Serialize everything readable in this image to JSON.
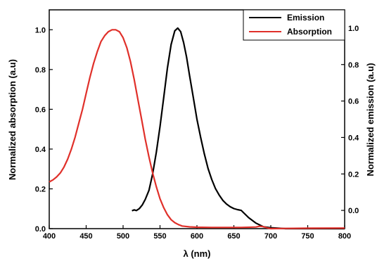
{
  "chart_data": {
    "type": "line",
    "xlabel": "λ (nm)",
    "ylabel_left": "Normalized absorption (a.u)",
    "ylabel_right": "Normalized emission (a.u)",
    "xlim": [
      400,
      800
    ],
    "ylim_left": [
      0.0,
      1.1
    ],
    "ylim_right": [
      -0.1,
      1.1
    ],
    "x_ticks": [
      400,
      450,
      500,
      550,
      600,
      650,
      700,
      750,
      800
    ],
    "y_ticks_left": [
      "0.0",
      "0.2",
      "0.4",
      "0.6",
      "0.8",
      "1.0"
    ],
    "y_ticks_right": [
      "0.0",
      "0.2",
      "0.4",
      "0.6",
      "0.8",
      "1.0"
    ],
    "grid": false,
    "legend_position": "top-right",
    "series": [
      {
        "name": "Emission",
        "color": "#000000",
        "axis": "right",
        "points": [
          [
            512,
            -0.002
          ],
          [
            515,
            0.003
          ],
          [
            518,
            -0.001
          ],
          [
            522,
            0.01
          ],
          [
            526,
            0.03
          ],
          [
            530,
            0.06
          ],
          [
            535,
            0.11
          ],
          [
            540,
            0.2
          ],
          [
            545,
            0.32
          ],
          [
            550,
            0.46
          ],
          [
            555,
            0.62
          ],
          [
            560,
            0.78
          ],
          [
            565,
            0.91
          ],
          [
            570,
            0.985
          ],
          [
            574,
            1.0
          ],
          [
            578,
            0.98
          ],
          [
            582,
            0.92
          ],
          [
            586,
            0.84
          ],
          [
            590,
            0.74
          ],
          [
            595,
            0.62
          ],
          [
            600,
            0.5
          ],
          [
            605,
            0.4
          ],
          [
            610,
            0.31
          ],
          [
            615,
            0.23
          ],
          [
            620,
            0.17
          ],
          [
            625,
            0.12
          ],
          [
            630,
            0.085
          ],
          [
            635,
            0.055
          ],
          [
            640,
            0.035
          ],
          [
            645,
            0.02
          ],
          [
            650,
            0.01
          ],
          [
            655,
            0.004
          ],
          [
            660,
            0.0
          ],
          [
            670,
            -0.04
          ],
          [
            680,
            -0.07
          ],
          [
            690,
            -0.09
          ],
          [
            700,
            -0.095
          ],
          [
            720,
            -0.1
          ],
          [
            760,
            -0.1
          ],
          [
            800,
            -0.1
          ]
        ]
      },
      {
        "name": "Absorption",
        "color": "#e0302a",
        "axis": "left",
        "points": [
          [
            400,
            0.235
          ],
          [
            405,
            0.245
          ],
          [
            410,
            0.26
          ],
          [
            415,
            0.28
          ],
          [
            420,
            0.31
          ],
          [
            425,
            0.35
          ],
          [
            430,
            0.4
          ],
          [
            435,
            0.46
          ],
          [
            440,
            0.53
          ],
          [
            445,
            0.6
          ],
          [
            450,
            0.68
          ],
          [
            455,
            0.76
          ],
          [
            460,
            0.83
          ],
          [
            465,
            0.89
          ],
          [
            470,
            0.94
          ],
          [
            475,
            0.97
          ],
          [
            480,
            0.99
          ],
          [
            485,
            1.0
          ],
          [
            490,
            1.0
          ],
          [
            495,
            0.99
          ],
          [
            500,
            0.96
          ],
          [
            505,
            0.91
          ],
          [
            510,
            0.84
          ],
          [
            515,
            0.75
          ],
          [
            520,
            0.65
          ],
          [
            525,
            0.55
          ],
          [
            530,
            0.45
          ],
          [
            535,
            0.36
          ],
          [
            540,
            0.28
          ],
          [
            545,
            0.21
          ],
          [
            550,
            0.15
          ],
          [
            555,
            0.105
          ],
          [
            560,
            0.07
          ],
          [
            565,
            0.045
          ],
          [
            570,
            0.03
          ],
          [
            575,
            0.02
          ],
          [
            580,
            0.013
          ],
          [
            590,
            0.009
          ],
          [
            600,
            0.007
          ],
          [
            620,
            0.006
          ],
          [
            640,
            0.006
          ],
          [
            660,
            0.006
          ],
          [
            680,
            0.008
          ],
          [
            685,
            0.012
          ],
          [
            690,
            0.01
          ],
          [
            695,
            0.004
          ],
          [
            700,
            0.0
          ],
          [
            720,
            0.001
          ],
          [
            750,
            0.002
          ],
          [
            800,
            0.003
          ]
        ]
      }
    ]
  }
}
